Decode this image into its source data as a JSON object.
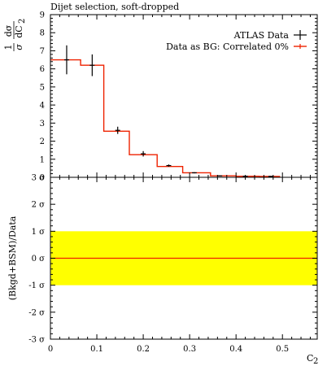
{
  "chart_data": [
    {
      "type": "line",
      "title": "Dijet selection, soft-dropped",
      "ylabel_prefix": "1",
      "ylabel_sigma": "σ",
      "ylabel_num": "dσ",
      "ylabel_den": "dC",
      "ylabel_den_sub": "2",
      "xlim": [
        0,
        0.575
      ],
      "ylim": [
        0,
        9
      ],
      "yticks": [
        "0",
        "1",
        "2",
        "3",
        "4",
        "5",
        "6",
        "7",
        "8",
        "9"
      ],
      "legend_placement": "top-right",
      "series": [
        {
          "name": "ATLAS Data",
          "style": "points-with-errors",
          "color": "#000000",
          "points": [
            {
              "x": 0.035,
              "y": 6.5,
              "err": 0.8
            },
            {
              "x": 0.09,
              "y": 6.2,
              "err": 0.6
            },
            {
              "x": 0.145,
              "y": 2.6,
              "err": 0.2
            },
            {
              "x": 0.2,
              "y": 1.3,
              "err": 0.15
            },
            {
              "x": 0.255,
              "y": 0.65,
              "err": 0.06
            },
            {
              "x": 0.31,
              "y": 0.25,
              "err": 0.03
            },
            {
              "x": 0.365,
              "y": 0.08,
              "err": 0.02
            },
            {
              "x": 0.42,
              "y": 0.06,
              "err": 0.02
            },
            {
              "x": 0.475,
              "y": 0.05,
              "err": 0.02
            }
          ]
        },
        {
          "name": "Data as BG: Correlated 0%",
          "style": "step",
          "color": "#ee2200",
          "edges": [
            0.0,
            0.065,
            0.115,
            0.17,
            0.23,
            0.285,
            0.345,
            0.4,
            0.45,
            0.495
          ],
          "values": [
            6.5,
            6.2,
            2.55,
            1.25,
            0.6,
            0.25,
            0.08,
            0.06,
            0.05
          ]
        }
      ]
    },
    {
      "type": "line",
      "ylabel": "(Bkgd+BSM)/Data",
      "xlabel": "C",
      "xlabel_sub": "2",
      "xlim": [
        0,
        0.575
      ],
      "xticks": [
        "0",
        "0.1",
        "0.2",
        "0.3",
        "0.4",
        "0.5"
      ],
      "ylim": [
        -3,
        3
      ],
      "yticks": [
        "-3 σ",
        "-2 σ",
        "-1 σ",
        "0 σ",
        "1 σ",
        "2 σ",
        "3 σ"
      ],
      "band": {
        "from": -1,
        "to": 1,
        "color": "#ffff00"
      },
      "center_line": {
        "y": 0,
        "color": "#ee2200"
      }
    }
  ]
}
